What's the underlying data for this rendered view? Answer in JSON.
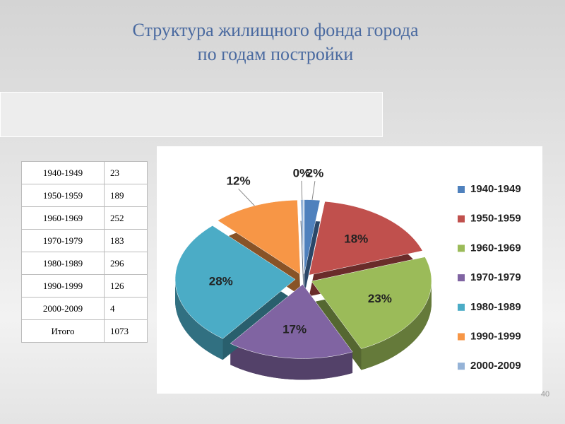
{
  "title": [
    "Структура жилищного фонда города",
    "по годам постройки"
  ],
  "page_number": "40",
  "table": {
    "rows": [
      [
        "1940-1949",
        23
      ],
      [
        "1950-1959",
        189
      ],
      [
        "1960-1969",
        252
      ],
      [
        "1970-1979",
        183
      ],
      [
        "1980-1989",
        296
      ],
      [
        "1990-1999",
        126
      ],
      [
        "2000-2009",
        4
      ],
      [
        "Итого",
        1073
      ]
    ]
  },
  "chart_data": {
    "type": "pie",
    "categories": [
      "1940-1949",
      "1950-1959",
      "1960-1969",
      "1970-1979",
      "1980-1989",
      "1990-1999",
      "2000-2009"
    ],
    "values": [
      2.1,
      17.6,
      23.5,
      17.1,
      27.6,
      11.7,
      0.4
    ],
    "value_labels": [
      "2%",
      "18%",
      "23%",
      "17%",
      "28%",
      "12%",
      "0%"
    ],
    "colors": [
      "#4f81bd",
      "#c0504d",
      "#9bbb59",
      "#8064a2",
      "#4bacc6",
      "#f79646",
      "#95b3d7"
    ],
    "legend": "right"
  }
}
